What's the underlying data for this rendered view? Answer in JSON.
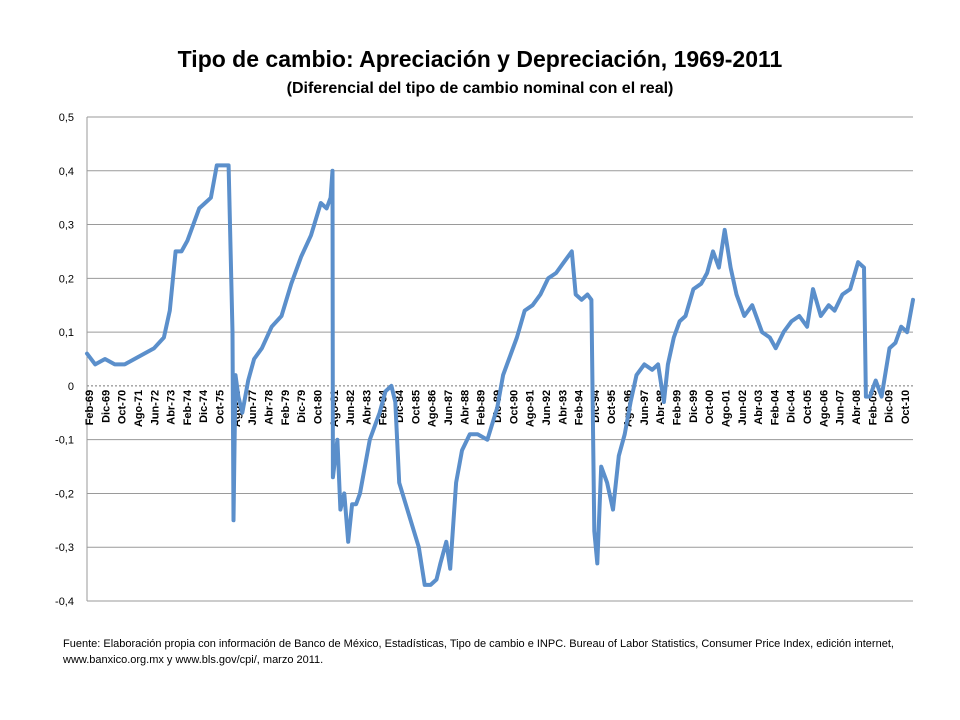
{
  "slide": {
    "title": "Tipo de cambio: Apreciación y Depreciación, 1969-2011",
    "subtitle": "(Diferencial del tipo de cambio nominal con el real)",
    "source_line1": "Fuente: Elaboración propia con información de Banco de México, Estadísticas, Tipo de cambio e INPC.  Bureau of Labor Statistics, Consumer Price Index, edición internet,",
    "source_line2": "www.banxico.org.mx y www.bls.gov/cpi/, marzo 2011."
  },
  "chart_data": {
    "type": "line",
    "title": "Tipo de cambio: Apreciación y Depreciación, 1969-2011",
    "subtitle": "(Diferencial del tipo de cambio nominal con el real)",
    "xlabel": "",
    "ylabel": "",
    "xlim": [
      1969.08,
      2011.2
    ],
    "ylim": [
      -0.4,
      0.5
    ],
    "y_ticks": [
      0.5,
      0.4,
      0.3,
      0.2,
      0.1,
      0,
      -0.1,
      -0.2,
      -0.3,
      -0.4
    ],
    "y_tick_labels": [
      "0,5",
      "0,4",
      "0,3",
      "0,2",
      "0,1",
      "0",
      "-0,1",
      "-0,2",
      "-0,3",
      "-0,4"
    ],
    "x_tick_labels": [
      "Feb-69",
      "Dic-69",
      "Oct-70",
      "Ago-71",
      "Jun-72",
      "Abr-73",
      "Feb-74",
      "Dic-74",
      "Oct-75",
      "Ago-76",
      "Jun-77",
      "Abr-78",
      "Feb-79",
      "Dic-79",
      "Oct-80",
      "Ago-81",
      "Jun-82",
      "Abr-83",
      "Feb-84",
      "Dic-84",
      "Oct-85",
      "Ago-86",
      "Jun-87",
      "Abr-88",
      "Feb-89",
      "Dic-89",
      "Oct-90",
      "Ago-91",
      "Jun-92",
      "Abr-93",
      "Feb-94",
      "Dic-94",
      "Oct-95",
      "Ago-96",
      "Jun-97",
      "Abr-98",
      "Feb-99",
      "Dic-99",
      "Oct-00",
      "Ago-01",
      "Jun-02",
      "Abr-03",
      "Feb-04",
      "Dic-04",
      "Oct-05",
      "Ago-06",
      "Jun-07",
      "Abr-08",
      "Feb-09",
      "Dic-09",
      "Oct-10"
    ],
    "grid": true,
    "line_color": "#5B8FCB",
    "series": [
      {
        "x": [
          1969.08,
          1969.5,
          1970.0,
          1970.5,
          1971.0,
          1971.5,
          1972.0,
          1972.5,
          1973.0,
          1973.3,
          1973.6,
          1973.9,
          1974.2,
          1974.5,
          1974.8,
          1975.1,
          1975.4,
          1975.7,
          1976.0,
          1976.3,
          1976.5,
          1976.55,
          1976.65,
          1976.8,
          1977.0,
          1977.3,
          1977.6,
          1978.0,
          1978.5,
          1979.0,
          1979.5,
          1980.0,
          1980.5,
          1981.0,
          1981.3,
          1981.5,
          1981.6,
          1981.62,
          1981.85,
          1982.0,
          1982.2,
          1982.4,
          1982.6,
          1982.8,
          1983.0,
          1983.5,
          1984.0,
          1984.3,
          1984.6,
          1984.8,
          1985.0,
          1985.5,
          1986.0,
          1986.3,
          1986.6,
          1986.9,
          1987.1,
          1987.4,
          1987.6,
          1987.9,
          1988.2,
          1988.6,
          1989.0,
          1989.5,
          1990.0,
          1990.3,
          1990.6,
          1991.0,
          1991.4,
          1991.8,
          1992.2,
          1992.6,
          1993.0,
          1993.4,
          1993.8,
          1994.0,
          1994.3,
          1994.6,
          1994.8,
          1994.95,
          1995.1,
          1995.3,
          1995.6,
          1995.9,
          1996.2,
          1996.5,
          1996.8,
          1997.1,
          1997.5,
          1997.9,
          1998.2,
          1998.5,
          1998.7,
          1999.0,
          1999.3,
          1999.6,
          2000.0,
          2000.4,
          2000.7,
          2001.0,
          2001.3,
          2001.6,
          2001.9,
          2002.2,
          2002.6,
          2003.0,
          2003.5,
          2003.9,
          2004.2,
          2004.6,
          2005.0,
          2005.4,
          2005.8,
          2006.1,
          2006.5,
          2006.9,
          2007.2,
          2007.6,
          2008.0,
          2008.4,
          2008.7,
          2008.8,
          2009.0,
          2009.3,
          2009.6,
          2010.0,
          2010.3,
          2010.6,
          2010.9,
          2011.2
        ],
        "values": [
          0.06,
          0.04,
          0.05,
          0.04,
          0.04,
          0.05,
          0.06,
          0.07,
          0.09,
          0.14,
          0.25,
          0.25,
          0.27,
          0.3,
          0.33,
          0.34,
          0.35,
          0.41,
          0.41,
          0.41,
          0.1,
          -0.25,
          0.02,
          -0.02,
          -0.05,
          0.01,
          0.05,
          0.07,
          0.11,
          0.13,
          0.19,
          0.24,
          0.28,
          0.34,
          0.33,
          0.35,
          0.4,
          -0.17,
          -0.1,
          -0.23,
          -0.2,
          -0.29,
          -0.22,
          -0.22,
          -0.2,
          -0.1,
          -0.05,
          -0.01,
          0.0,
          -0.03,
          -0.18,
          -0.24,
          -0.3,
          -0.37,
          -0.37,
          -0.36,
          -0.33,
          -0.29,
          -0.34,
          -0.18,
          -0.12,
          -0.09,
          -0.09,
          -0.1,
          -0.04,
          0.02,
          0.05,
          0.09,
          0.14,
          0.15,
          0.17,
          0.2,
          0.21,
          0.23,
          0.25,
          0.17,
          0.16,
          0.17,
          0.16,
          -0.27,
          -0.33,
          -0.15,
          -0.18,
          -0.23,
          -0.13,
          -0.09,
          -0.03,
          0.02,
          0.04,
          0.03,
          0.04,
          -0.03,
          0.04,
          0.09,
          0.12,
          0.13,
          0.18,
          0.19,
          0.21,
          0.25,
          0.22,
          0.29,
          0.22,
          0.17,
          0.13,
          0.15,
          0.1,
          0.09,
          0.07,
          0.1,
          0.12,
          0.13,
          0.11,
          0.18,
          0.13,
          0.15,
          0.14,
          0.17,
          0.18,
          0.23,
          0.22,
          -0.02,
          -0.02,
          0.01,
          -0.02,
          0.07,
          0.08,
          0.11,
          0.1,
          0.16
        ]
      }
    ]
  }
}
